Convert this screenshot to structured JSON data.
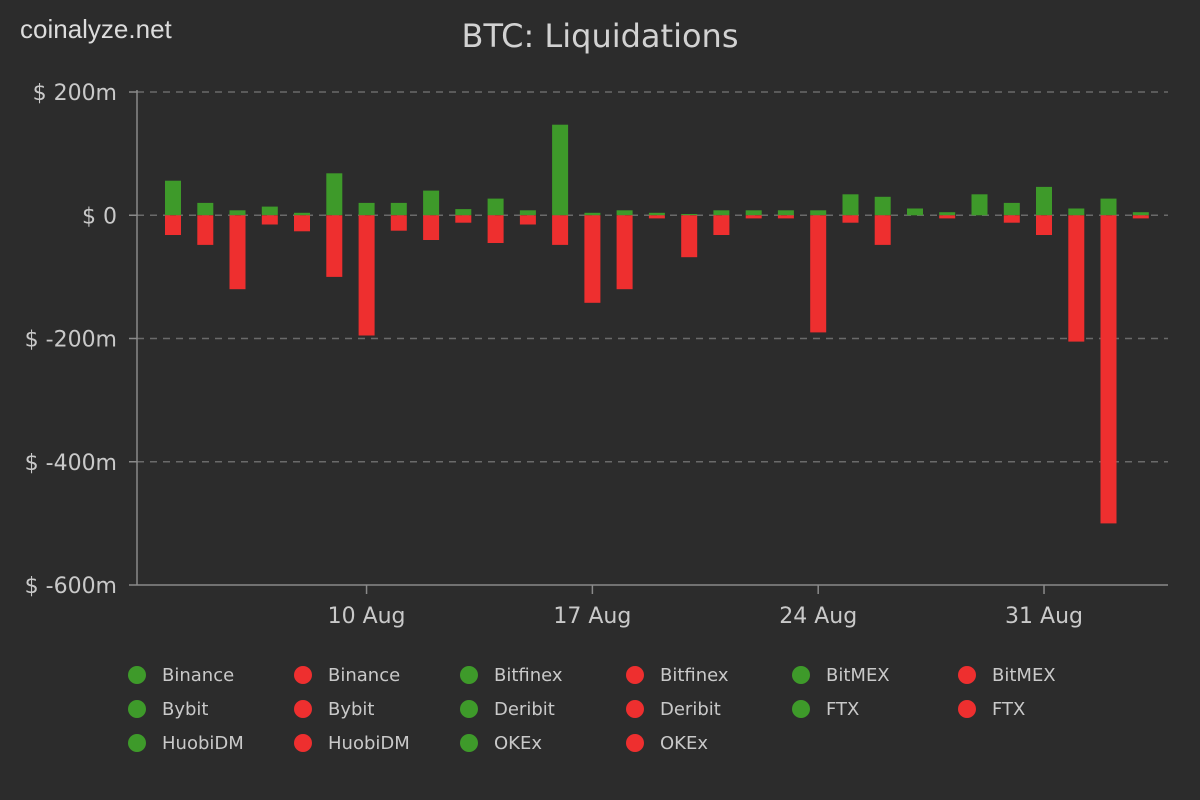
{
  "brand": "coinalyze.net",
  "colors": {
    "background": "#2c2c2c",
    "long": "#3e9a2a",
    "short": "#ee2f2f",
    "grid": "#6a6a6a",
    "axis": "#8a8a8a",
    "text": "#c9c9c9",
    "title": "#d2d2d2"
  },
  "chart_data": {
    "type": "bar",
    "title": "BTC: Liquidations",
    "stacked": true,
    "y_tick_labels": [
      "$ 200m",
      "$ 0",
      "$ -200m",
      "$ -400m",
      "$ -600m"
    ],
    "y_ticks": [
      200,
      0,
      -200,
      -400,
      -600
    ],
    "ylim": [
      -600,
      200
    ],
    "x_tick_labels": [
      {
        "label": "10 Aug",
        "date": "2021-08-10"
      },
      {
        "label": "17 Aug",
        "date": "2021-08-17"
      },
      {
        "label": "24 Aug",
        "date": "2021-08-24"
      },
      {
        "label": "31 Aug",
        "date": "2021-08-31"
      }
    ],
    "categories": [
      "2021-08-04",
      "2021-08-05",
      "2021-08-06",
      "2021-08-07",
      "2021-08-08",
      "2021-08-09",
      "2021-08-10",
      "2021-08-11",
      "2021-08-12",
      "2021-08-13",
      "2021-08-14",
      "2021-08-15",
      "2021-08-16",
      "2021-08-17",
      "2021-08-18",
      "2021-08-19",
      "2021-08-20",
      "2021-08-21",
      "2021-08-22",
      "2021-08-23",
      "2021-08-24",
      "2021-08-25",
      "2021-08-26",
      "2021-08-27",
      "2021-08-28",
      "2021-08-29",
      "2021-08-30",
      "2021-08-31",
      "2021-09-01",
      "2021-09-02",
      "2021-09-03",
      "2021-09-04"
    ],
    "series": [
      {
        "group": "long",
        "values": [
          56,
          20,
          8,
          14,
          4,
          68,
          20,
          20,
          40,
          10,
          27,
          8,
          147,
          4,
          8,
          4,
          2,
          8,
          8,
          8,
          8,
          34,
          30,
          11,
          5,
          34,
          20,
          46,
          11,
          27,
          5,
          0
        ]
      },
      {
        "group": "short",
        "values": [
          -32,
          -48,
          -120,
          -15,
          -26,
          -100,
          -195,
          -25,
          -40,
          -12,
          -45,
          -15,
          -48,
          -142,
          -120,
          -5,
          -68,
          -32,
          -5,
          -5,
          -190,
          -12,
          -48,
          0,
          -5,
          0,
          -12,
          -32,
          -205,
          -500,
          -5,
          0
        ]
      }
    ]
  },
  "legend": [
    {
      "label": "Binance",
      "color": "#3e9a2a"
    },
    {
      "label": "Binance",
      "color": "#ee2f2f"
    },
    {
      "label": "Bitfinex",
      "color": "#3e9a2a"
    },
    {
      "label": "Bitfinex",
      "color": "#ee2f2f"
    },
    {
      "label": "BitMEX",
      "color": "#3e9a2a"
    },
    {
      "label": "BitMEX",
      "color": "#ee2f2f"
    },
    {
      "label": "Bybit",
      "color": "#3e9a2a"
    },
    {
      "label": "Bybit",
      "color": "#ee2f2f"
    },
    {
      "label": "Deribit",
      "color": "#3e9a2a"
    },
    {
      "label": "Deribit",
      "color": "#ee2f2f"
    },
    {
      "label": "FTX",
      "color": "#3e9a2a"
    },
    {
      "label": "FTX",
      "color": "#ee2f2f"
    },
    {
      "label": "HuobiDM",
      "color": "#3e9a2a"
    },
    {
      "label": "HuobiDM",
      "color": "#ee2f2f"
    },
    {
      "label": "OKEx",
      "color": "#3e9a2a"
    },
    {
      "label": "OKEx",
      "color": "#ee2f2f"
    }
  ]
}
